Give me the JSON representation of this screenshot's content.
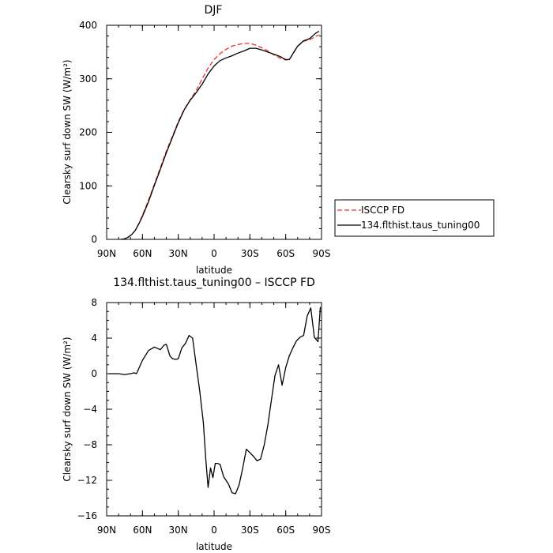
{
  "chart_data": [
    {
      "type": "line",
      "title": "DJF",
      "xlabel": "latitude",
      "ylabel": "Clearsky surf down SW (W/m²)",
      "xlim": [
        90,
        -90
      ],
      "ylim": [
        0,
        400
      ],
      "x_tick_values": [
        90,
        60,
        30,
        0,
        -30,
        -60,
        -90
      ],
      "x_tick_labels": [
        "90N",
        "60N",
        "30N",
        "0",
        "30S",
        "60S",
        "90S"
      ],
      "y_tick_values": [
        0,
        100,
        200,
        300,
        400
      ],
      "y_tick_labels": [
        "0",
        "100",
        "200",
        "300",
        "400"
      ],
      "legend_position": "outside-right",
      "series": [
        {
          "name": "ISCCP FD",
          "color": "#e8322d",
          "dash": "dashed",
          "x": [
            78,
            75,
            72,
            69,
            66,
            63,
            60,
            55,
            50,
            45,
            40,
            35,
            30,
            25,
            20,
            15,
            10,
            5,
            0,
            -5,
            -10,
            -15,
            -20,
            -25,
            -30,
            -35,
            -40,
            -45,
            -50,
            -55,
            -60,
            -63,
            -66,
            -70,
            -75,
            -80,
            -85,
            -88
          ],
          "y": [
            0,
            1,
            4,
            9,
            17,
            30,
            45,
            73,
            103,
            134,
            165,
            192,
            220,
            243,
            261,
            278,
            300,
            320,
            336,
            347,
            355,
            361,
            364,
            366,
            366,
            363,
            358,
            352,
            345,
            339,
            335,
            336,
            346,
            361,
            370,
            373,
            379,
            382
          ]
        },
        {
          "name": "134.flthist.taus_tuning00",
          "color": "#000000",
          "dash": "solid",
          "x": [
            78,
            75,
            72,
            69,
            66,
            63,
            60,
            55,
            50,
            45,
            40,
            35,
            30,
            25,
            20,
            15,
            10,
            5,
            0,
            -5,
            -10,
            -15,
            -20,
            -25,
            -30,
            -35,
            -40,
            -45,
            -50,
            -55,
            -60,
            -63,
            -66,
            -70,
            -75,
            -80,
            -85,
            -88
          ],
          "y": [
            0,
            1,
            4,
            9,
            17,
            29,
            43,
            70,
            101,
            131,
            162,
            190,
            218,
            242,
            260,
            274,
            290,
            309,
            324,
            334,
            339,
            343,
            348,
            352,
            357,
            357,
            354,
            350,
            346,
            342,
            336,
            336,
            347,
            361,
            371,
            375,
            385,
            389
          ]
        }
      ]
    },
    {
      "type": "line",
      "title": "134.flthist.taus_tuning00 – ISCCP FD",
      "xlabel": "latitude",
      "ylabel": "Clearsky surf down SW (W/m²)",
      "xlim": [
        90,
        -90
      ],
      "ylim": [
        -16,
        8
      ],
      "x_tick_values": [
        90,
        60,
        30,
        0,
        -30,
        -60,
        -90
      ],
      "x_tick_labels": [
        "90N",
        "60N",
        "30N",
        "0",
        "30S",
        "60S",
        "90S"
      ],
      "y_tick_values": [
        -16,
        -12,
        -8,
        -4,
        0,
        4,
        8
      ],
      "y_tick_labels": [
        "−16",
        "−12",
        "−8",
        "−4",
        "0",
        "4",
        "8"
      ],
      "series": [
        {
          "color": "#000000",
          "dash": "solid",
          "x": [
            88,
            85,
            80,
            75,
            70,
            67,
            65,
            60,
            55,
            50,
            45,
            42,
            40,
            37,
            35,
            32,
            30,
            27,
            24,
            21,
            18,
            15,
            12,
            9,
            7,
            5,
            3,
            1,
            -1,
            -3,
            -5,
            -8,
            -12,
            -15,
            -18,
            -21,
            -24,
            -27,
            -30,
            -33,
            -36,
            -39,
            -42,
            -45,
            -48,
            -51,
            -54,
            -57,
            -60,
            -63,
            -66,
            -69,
            -72,
            -75,
            -78,
            -81,
            -84,
            -87,
            -89
          ],
          "y": [
            0,
            0,
            0,
            -0.1,
            0,
            0.1,
            0,
            1.5,
            2.6,
            3.0,
            2.7,
            3.2,
            3.3,
            2.0,
            1.7,
            1.6,
            1.7,
            2.9,
            3.4,
            4.3,
            4.0,
            1.0,
            -2.0,
            -5.5,
            -9.5,
            -12.8,
            -10.6,
            -11.7,
            -10.1,
            -10.1,
            -10.2,
            -11.6,
            -12.4,
            -13.4,
            -13.5,
            -12.5,
            -10.6,
            -8.5,
            -8.9,
            -9.3,
            -9.8,
            -9.6,
            -8.0,
            -5.8,
            -3.0,
            -0.2,
            1.0,
            -1.3,
            0.7,
            2.0,
            2.9,
            3.7,
            4.1,
            4.3,
            6.5,
            7.4,
            4.1,
            3.6,
            7.5
          ]
        }
      ]
    }
  ]
}
